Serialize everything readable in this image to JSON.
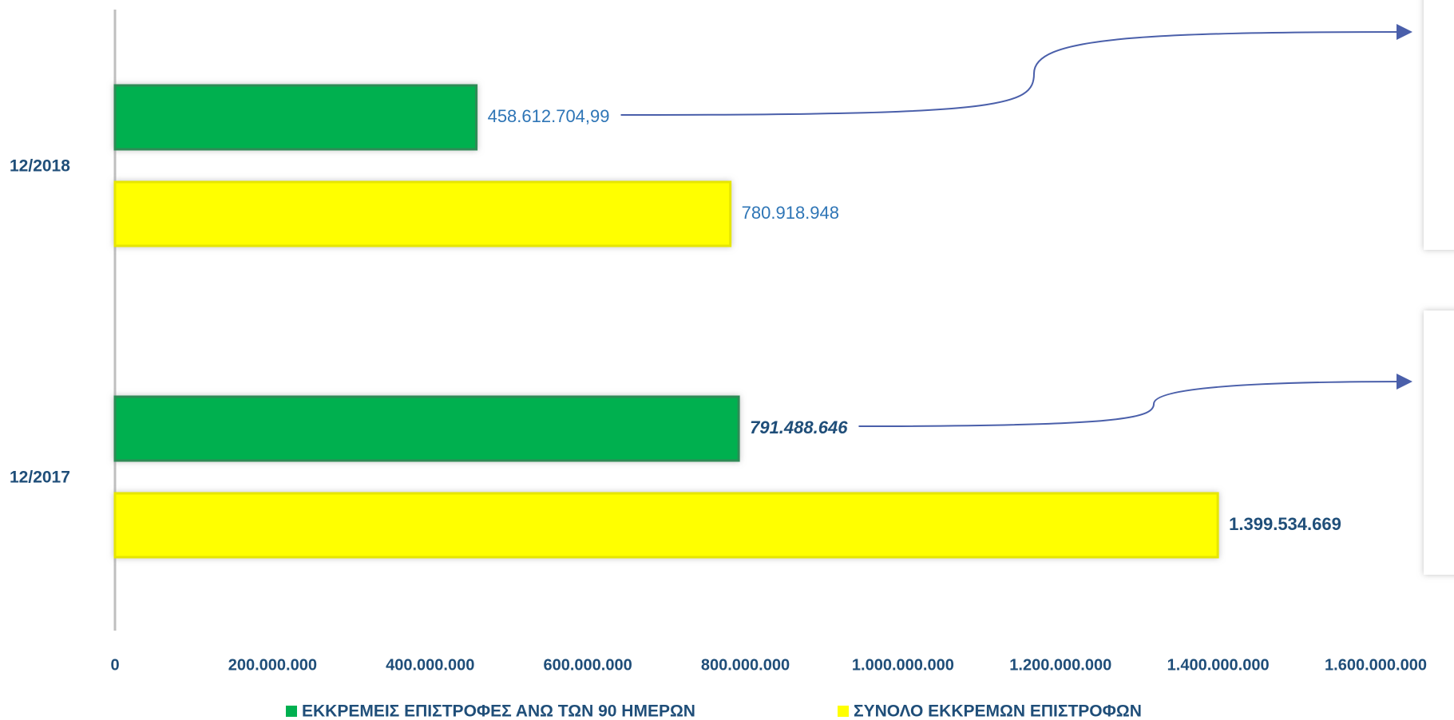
{
  "chart_data": {
    "type": "bar",
    "orientation": "horizontal",
    "categories": [
      "12/2018",
      "12/2017"
    ],
    "series": [
      {
        "name": "ΕΚΚΡΕΜΕΙΣ ΕΠΙΣΤΡΟΦΕΣ ΑΝΩ ΤΩΝ 90 ΗΜΕΡΩΝ",
        "color": "#00b050",
        "values": [
          458612704.99,
          791488646
        ],
        "value_labels": [
          "458.612.704,99",
          "791.488.646"
        ]
      },
      {
        "name": "ΣΥΝΟΛΟ ΕΚΚΡΕΜΩΝ ΕΠΙΣΤΡΟΦΩΝ",
        "color": "#ffff00",
        "values": [
          780918948,
          1399534669
        ],
        "value_labels": [
          "780.918.948",
          "1.399.534.669"
        ]
      }
    ],
    "xlim": [
      0,
      1600000000
    ],
    "xticks": [
      0,
      {
        "value": 200000000,
        "label": "200.000.000"
      },
      {
        "value": 400000000,
        "label": "400.000.000"
      },
      {
        "value": 600000000,
        "label": "600.000.000"
      },
      {
        "value": 800000000,
        "label": "800.000.000"
      },
      {
        "value": 1000000000,
        "label": "1.000.000.000"
      },
      {
        "value": 1200000000,
        "label": "1.200.000.000"
      },
      {
        "value": 1400000000,
        "label": "1.400.000.000"
      },
      {
        "value": 1600000000,
        "label": "1.600.000.000"
      }
    ],
    "legend": "bottom"
  }
}
